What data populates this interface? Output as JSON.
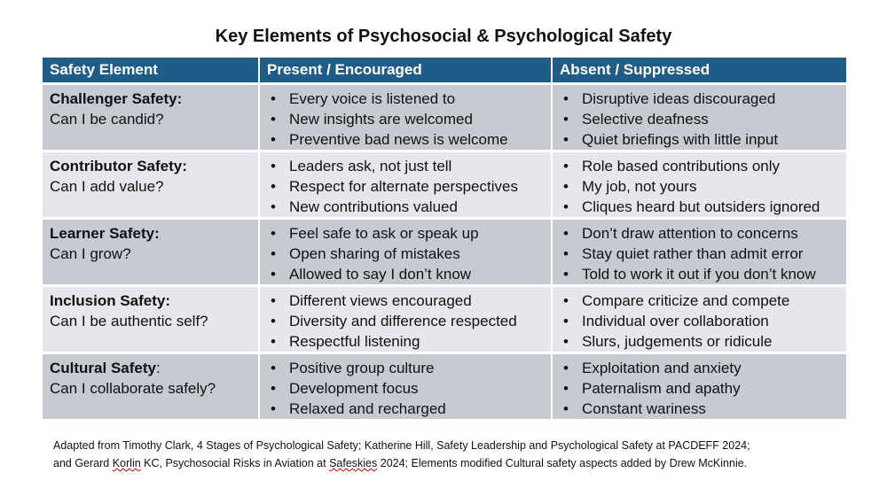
{
  "title": "Key Elements of Psychosocial & Psychological Safety",
  "table": {
    "headers": [
      "Safety Element",
      "Present / Encouraged",
      "Absent / Suppressed"
    ],
    "rows": [
      {
        "element": "Challenger Safety:",
        "question": "Can I be candid?",
        "present": [
          "Every voice is listened to",
          "New insights are welcomed",
          "Preventive bad news is welcome"
        ],
        "absent": [
          "Disruptive ideas discouraged",
          "Selective deafness",
          "Quiet briefings with little input"
        ]
      },
      {
        "element": "Contributor Safety:",
        "question": "Can I add value?",
        "present": [
          "Leaders ask, not just tell",
          "Respect for alternate perspectives",
          "New contributions valued"
        ],
        "absent": [
          "Role based contributions only",
          "My job, not yours",
          "Cliques heard but outsiders ignored"
        ]
      },
      {
        "element": "Learner Safety:",
        "question": "Can I grow?",
        "present": [
          "Feel safe to ask or speak up",
          "Open sharing of mistakes",
          "Allowed to say I don’t know"
        ],
        "absent": [
          "Don’t draw attention to concerns",
          "Stay quiet rather than admit error",
          "Told to work it out if you don’t know"
        ]
      },
      {
        "element": "Inclusion Safety:",
        "question": "Can I be authentic self?",
        "present": [
          "Different views encouraged",
          "Diversity and difference respected",
          "Respectful listening"
        ],
        "absent": [
          "Compare criticize and compete",
          "Individual over collaboration",
          "Slurs, judgements or ridicule"
        ]
      },
      {
        "element": "Cultural Safety",
        "element_suffix": ":",
        "question": "Can I collaborate safely?",
        "present": [
          "Positive group culture",
          "Development focus",
          "Relaxed and recharged"
        ],
        "absent": [
          "Exploitation and anxiety",
          "Paternalism and apathy",
          "Constant wariness"
        ]
      }
    ]
  },
  "footnote": {
    "line1": "Adapted from Timothy Clark, 4 Stages of Psychological Safety; Katherine Hill, Safety Leadership and Psychological Safety at PACDEFF 2024;",
    "line2_a": "and Gerard ",
    "line2_b": "Korlin",
    "line2_c": " KC, Psychosocial Risks in Aviation at ",
    "line2_d": "Safeskies",
    "line2_e": " 2024; Elements modified Cultural safety aspects added by Drew McKinnie."
  },
  "colors": {
    "header_bg": "#1f5c87",
    "row_dark": "#c7cad1",
    "row_light": "#e5e7eb"
  }
}
